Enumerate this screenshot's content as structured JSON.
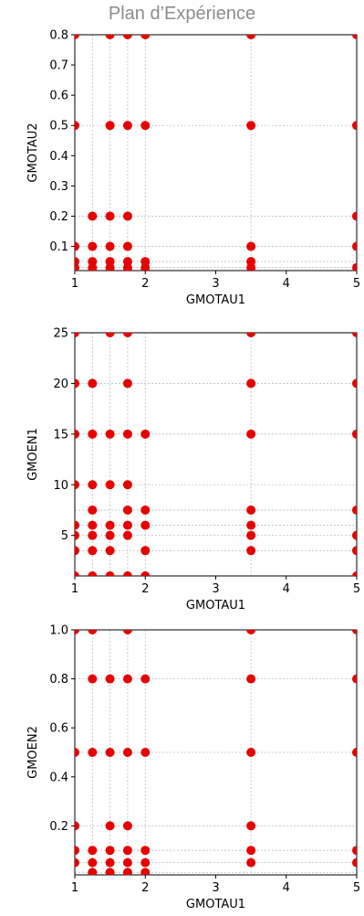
{
  "page_title": "Plan d’Expérience",
  "colors": {
    "point": "#e60000",
    "grid": "#bfbfbf",
    "axis": "#000000",
    "title": "#8c8c8c"
  },
  "chart_data": [
    {
      "type": "scatter",
      "xlabel": "GMOTAU1",
      "ylabel": "GMOTAU2",
      "xlim": [
        1,
        5
      ],
      "ylim": [
        0.02,
        0.8
      ],
      "xticks": [
        1,
        2,
        3,
        4,
        5
      ],
      "yticks": [
        0.1,
        0.2,
        0.3,
        0.4,
        0.5,
        0.6,
        0.7,
        0.8
      ],
      "ytick_labels": [
        "0.1",
        "0.2",
        "0.3",
        "0.4",
        "0.5",
        "0.6",
        "0.7",
        "0.8"
      ],
      "xgrid": [
        1,
        1.25,
        1.5,
        1.75,
        2,
        3.5,
        5
      ],
      "ygrid": [
        0.02,
        0.03,
        0.05,
        0.1,
        0.2,
        0.5,
        0.8
      ],
      "grid": true,
      "points": [
        [
          1,
          0.8
        ],
        [
          1.5,
          0.8
        ],
        [
          1.75,
          0.8
        ],
        [
          2,
          0.8
        ],
        [
          3.5,
          0.8
        ],
        [
          5,
          0.8
        ],
        [
          1,
          0.5
        ],
        [
          1.5,
          0.5
        ],
        [
          1.75,
          0.5
        ],
        [
          2,
          0.5
        ],
        [
          3.5,
          0.5
        ],
        [
          5,
          0.5
        ],
        [
          1.25,
          0.2
        ],
        [
          1.5,
          0.2
        ],
        [
          1.75,
          0.2
        ],
        [
          5,
          0.2
        ],
        [
          1,
          0.1
        ],
        [
          1.25,
          0.1
        ],
        [
          1.5,
          0.1
        ],
        [
          1.75,
          0.1
        ],
        [
          3.5,
          0.1
        ],
        [
          5,
          0.1
        ],
        [
          1,
          0.05
        ],
        [
          1.25,
          0.05
        ],
        [
          1.5,
          0.05
        ],
        [
          1.75,
          0.05
        ],
        [
          2,
          0.05
        ],
        [
          3.5,
          0.05
        ],
        [
          1,
          0.03
        ],
        [
          1.25,
          0.03
        ],
        [
          1.5,
          0.03
        ],
        [
          1.75,
          0.03
        ],
        [
          2,
          0.03
        ],
        [
          3.5,
          0.03
        ],
        [
          5,
          0.03
        ],
        [
          1.25,
          0.02
        ],
        [
          1.5,
          0.02
        ],
        [
          1.75,
          0.02
        ],
        [
          2,
          0.02
        ]
      ]
    },
    {
      "type": "scatter",
      "xlabel": "GMOTAU1",
      "ylabel": "GMOEN1",
      "xlim": [
        1,
        5
      ],
      "ylim": [
        1,
        25
      ],
      "xticks": [
        1,
        2,
        3,
        4,
        5
      ],
      "yticks": [
        5,
        10,
        15,
        20,
        25
      ],
      "ytick_labels": [
        "5",
        "10",
        "15",
        "20",
        "25"
      ],
      "xgrid": [
        1,
        1.25,
        1.5,
        1.75,
        2,
        3.5,
        5
      ],
      "ygrid": [
        1,
        3.5,
        5,
        6,
        7.5,
        10,
        15,
        20,
        25
      ],
      "grid": true,
      "points": [
        [
          1,
          25
        ],
        [
          1.5,
          25
        ],
        [
          1.75,
          25
        ],
        [
          3.5,
          25
        ],
        [
          5,
          25
        ],
        [
          1,
          20
        ],
        [
          1.25,
          20
        ],
        [
          1.75,
          20
        ],
        [
          3.5,
          20
        ],
        [
          5,
          20
        ],
        [
          1,
          15
        ],
        [
          1.25,
          15
        ],
        [
          1.5,
          15
        ],
        [
          1.75,
          15
        ],
        [
          2,
          15
        ],
        [
          3.5,
          15
        ],
        [
          5,
          15
        ],
        [
          1,
          10
        ],
        [
          1.25,
          10
        ],
        [
          1.5,
          10
        ],
        [
          1.75,
          10
        ],
        [
          1.25,
          7.5
        ],
        [
          1.75,
          7.5
        ],
        [
          2,
          7.5
        ],
        [
          3.5,
          7.5
        ],
        [
          5,
          7.5
        ],
        [
          1,
          6
        ],
        [
          1.25,
          6
        ],
        [
          1.5,
          6
        ],
        [
          1.75,
          6
        ],
        [
          2,
          6
        ],
        [
          3.5,
          6
        ],
        [
          1,
          5
        ],
        [
          1.25,
          5
        ],
        [
          1.5,
          5
        ],
        [
          1.75,
          5
        ],
        [
          3.5,
          5
        ],
        [
          5,
          5
        ],
        [
          1,
          3.5
        ],
        [
          1.25,
          3.5
        ],
        [
          1.5,
          3.5
        ],
        [
          2,
          3.5
        ],
        [
          3.5,
          3.5
        ],
        [
          5,
          3.5
        ],
        [
          1,
          1
        ],
        [
          1.25,
          1
        ],
        [
          1.5,
          1
        ],
        [
          1.75,
          1
        ],
        [
          2,
          1
        ],
        [
          5,
          1
        ]
      ]
    },
    {
      "type": "scatter",
      "xlabel": "GMOTAU1",
      "ylabel": "GMOEN2",
      "xlim": [
        1,
        5
      ],
      "ylim": [
        0,
        1
      ],
      "xticks": [
        1,
        2,
        3,
        4,
        5
      ],
      "yticks": [
        0.2,
        0.4,
        0.6,
        0.8,
        1.0
      ],
      "ytick_labels": [
        "0.2",
        "0.4",
        "0.6",
        "0.8",
        "1.0"
      ],
      "xgrid": [
        1,
        1.25,
        1.5,
        1.75,
        2,
        3.5,
        5
      ],
      "ygrid": [
        0.01,
        0.05,
        0.1,
        0.2,
        0.5,
        0.8,
        1.0
      ],
      "grid": true,
      "points": [
        [
          1,
          1.0
        ],
        [
          1.25,
          1.0
        ],
        [
          1.75,
          1.0
        ],
        [
          3.5,
          1.0
        ],
        [
          5,
          1.0
        ],
        [
          1.25,
          0.8
        ],
        [
          1.5,
          0.8
        ],
        [
          1.75,
          0.8
        ],
        [
          2,
          0.8
        ],
        [
          3.5,
          0.8
        ],
        [
          5,
          0.8
        ],
        [
          1,
          0.5
        ],
        [
          1.25,
          0.5
        ],
        [
          1.5,
          0.5
        ],
        [
          1.75,
          0.5
        ],
        [
          2,
          0.5
        ],
        [
          3.5,
          0.5
        ],
        [
          5,
          0.5
        ],
        [
          1,
          0.2
        ],
        [
          1.5,
          0.2
        ],
        [
          1.75,
          0.2
        ],
        [
          3.5,
          0.2
        ],
        [
          1,
          0.1
        ],
        [
          1.25,
          0.1
        ],
        [
          1.5,
          0.1
        ],
        [
          1.75,
          0.1
        ],
        [
          2,
          0.1
        ],
        [
          3.5,
          0.1
        ],
        [
          5,
          0.1
        ],
        [
          1,
          0.05
        ],
        [
          1.25,
          0.05
        ],
        [
          1.5,
          0.05
        ],
        [
          1.75,
          0.05
        ],
        [
          2,
          0.05
        ],
        [
          3.5,
          0.05
        ],
        [
          5,
          0.05
        ],
        [
          1.25,
          0.01
        ],
        [
          1.5,
          0.01
        ],
        [
          1.75,
          0.01
        ],
        [
          2,
          0.01
        ]
      ]
    }
  ]
}
